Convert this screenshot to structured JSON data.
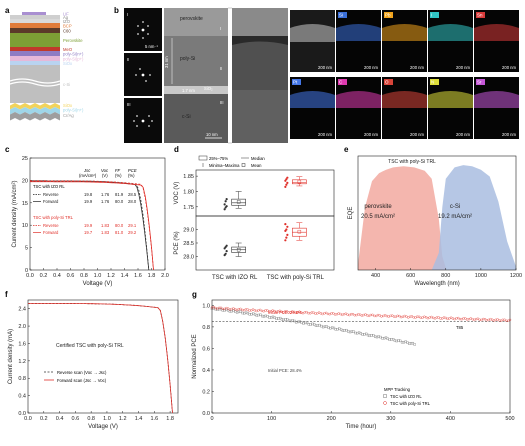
{
  "panel_a": {
    "letter": "a",
    "layers": [
      {
        "name": "LiF",
        "color": "#a98fd1"
      },
      {
        "name": "Ag",
        "color": "#cfcfcf"
      },
      {
        "name": "IZO",
        "color": "#d9d9d9"
      },
      {
        "name": "BCP",
        "color": "#e07b39"
      },
      {
        "name": "C60",
        "color": "#5b3a29"
      },
      {
        "name": "Perovskite",
        "color": "#7d9f35"
      },
      {
        "name": "MeO",
        "color": "#c0392b"
      },
      {
        "name": "poly-Si(n+)",
        "color": "#8e7cc3"
      },
      {
        "name": "poly-Si(p+)",
        "color": "#e6b8d8"
      },
      {
        "name": "SiOx",
        "color": "#b9d3f0"
      },
      {
        "name": "c-Si",
        "color": "#bfbfbf"
      },
      {
        "name": "SiOx",
        "color": "#f2d35a"
      },
      {
        "name": "poly-Si(n+)",
        "color": "#9fd6e8"
      },
      {
        "name": "Cr/Ag",
        "color": "#9e9e9e"
      }
    ]
  },
  "panel_b": {
    "letter": "b",
    "fft_labels": [
      "I",
      "II",
      "III"
    ],
    "scale_fft": "5 nm⁻¹",
    "tem_labels": [
      "perovskite",
      "poly-Si",
      "SiO₂",
      "c-Si"
    ],
    "tem_marks": [
      "I",
      "II",
      "III"
    ],
    "thickness_1": "31 nm",
    "thickness_2": "1.7 nm",
    "scale_tem": "10 nm",
    "scale_map": "200 nm",
    "maps": [
      {
        "el": "Si",
        "color": "#3a6fd8"
      },
      {
        "el": "Pb",
        "color": "#f0a31c"
      },
      {
        "el": "I",
        "color": "#31c4c4"
      },
      {
        "el": "Sn",
        "color": "#d83a3a"
      },
      {
        "el": "Pt",
        "color": "#4477e8"
      },
      {
        "el": "C",
        "color": "#e03ab0"
      },
      {
        "el": "O",
        "color": "#d8453a"
      },
      {
        "el": "N",
        "color": "#dede3a"
      },
      {
        "el": "Sr",
        "color": "#c657d8"
      }
    ]
  },
  "panel_c": {
    "letter": "c",
    "header": [
      "Jsc",
      "Voc",
      "FF",
      "PCE"
    ],
    "units": [
      "(mA/cm²)",
      "(V)",
      "(%)",
      "(%)"
    ],
    "group1_title": "TSC with IZO RL",
    "group1_rows": [
      {
        "label": "Reverse",
        "v": [
          "19.8",
          "1.76",
          "81.9",
          "28.5"
        ]
      },
      {
        "label": "Forward",
        "v": [
          "19.9",
          "1.76",
          "80.0",
          "28.0"
        ]
      }
    ],
    "group2_title": "TSC with poly-Si TRL",
    "group2_rows": [
      {
        "label": "Reverse",
        "v": [
          "19.9",
          "1.83",
          "80.0",
          "29.1"
        ]
      },
      {
        "label": "Forward",
        "v": [
          "19.7",
          "1.83",
          "81.0",
          "29.2"
        ]
      }
    ],
    "xlabel": "Voltage (V)",
    "ylabel": "Current density (mA/cm²)"
  },
  "panel_d": {
    "letter": "d",
    "legend": [
      "25%–75%",
      "Median",
      "Minima–Maxima",
      "Mean"
    ],
    "ylabel_top": "VOC (V)",
    "ylabel_bottom": "PCE (%)",
    "categories": [
      "TSC with IZO RL",
      "TSC with poly-Si TRL"
    ]
  },
  "panel_e": {
    "letter": "e",
    "title": "TSC with poly-Si TRL",
    "label_1": "perovskite",
    "value_1": "20.5 mA/cm²",
    "label_2": "c-Si",
    "value_2": "19.2 mA/cm²",
    "xlabel": "Wavelength (nm)",
    "ylabel": "EQE"
  },
  "panel_f": {
    "letter": "f",
    "title": "Certified TSC with poly-Si TRL",
    "legend_1": "Reverse scan (Voc → Jsc)",
    "legend_2": "Forward scan (Jsc → Voc)",
    "xlabel": "Voltage (V)",
    "ylabel": "Current density (mA)"
  },
  "panel_g": {
    "letter": "g",
    "annot_red": "Initial PCE: 29.0%",
    "annot_gray": "Initial PCE: 28.4%",
    "t85": "T85",
    "legend_title": "MPP Tracking",
    "legend_1": "TSC with IZO RL",
    "legend_2": "TSC with poly-Si TRL",
    "xlabel": "Time (hour)",
    "ylabel": "Normalized PCE"
  },
  "chart_data": [
    {
      "id": "c",
      "type": "line",
      "xlabel": "Voltage (V)",
      "ylabel": "Current density (mA/cm²)",
      "xlim": [
        0,
        2.0
      ],
      "ylim": [
        0,
        25
      ],
      "xticks": [
        0.0,
        0.2,
        0.4,
        0.6,
        0.8,
        1.0,
        1.2,
        1.4,
        1.6,
        1.8,
        2.0
      ],
      "yticks": [
        0,
        5,
        10,
        15,
        20,
        25
      ],
      "series": [
        {
          "name": "Reverse",
          "color": "#333333",
          "dash": "2,1.5",
          "jsc": 19.8,
          "voc": 1.76,
          "knee": 1.58
        },
        {
          "name": "Forward",
          "color": "#333333",
          "dash": "",
          "jsc": 19.9,
          "voc": 1.76,
          "knee": 1.56
        },
        {
          "name": "Reverse",
          "color": "#e0302a",
          "dash": "2,1.5",
          "jsc": 19.9,
          "voc": 1.83,
          "knee": 1.65
        },
        {
          "name": "Forward",
          "color": "#e0302a",
          "dash": "",
          "jsc": 19.7,
          "voc": 1.83,
          "knee": 1.66
        }
      ]
    },
    {
      "id": "d",
      "type": "box",
      "categories": [
        "TSC with IZO RL",
        "TSC with poly-Si TRL"
      ],
      "top": {
        "ylabel": "VOC (V)",
        "ylim": [
          1.72,
          1.87
        ],
        "yticks": [
          1.75,
          1.8,
          1.85
        ],
        "boxes": [
          {
            "color": "#333333",
            "min": 1.745,
            "q1": 1.755,
            "median": 1.763,
            "q3": 1.775,
            "max": 1.8,
            "mean": 1.766,
            "points": [
              1.742,
              1.748,
              1.752,
              1.758,
              1.768,
              1.775
            ]
          },
          {
            "color": "#e0302a",
            "min": 1.818,
            "q1": 1.825,
            "median": 1.83,
            "q3": 1.838,
            "max": 1.848,
            "mean": 1.832,
            "points": [
              1.815,
              1.822,
              1.828,
              1.835,
              1.84,
              1.845
            ]
          }
        ]
      },
      "bottom": {
        "ylabel": "PCE (%)",
        "ylim": [
          27.5,
          29.5
        ],
        "yticks": [
          28.0,
          28.5,
          29.0
        ],
        "boxes": [
          {
            "color": "#333333",
            "min": 28.0,
            "q1": 28.15,
            "median": 28.25,
            "q3": 28.35,
            "max": 28.5,
            "mean": 28.25,
            "points": [
              28.05,
              28.1,
              28.2,
              28.3,
              28.35,
              28.4
            ]
          },
          {
            "color": "#e0302a",
            "min": 28.6,
            "q1": 28.75,
            "median": 28.9,
            "q3": 29.05,
            "max": 29.25,
            "mean": 28.92,
            "points": [
              28.6,
              28.7,
              28.8,
              28.95,
              29.0,
              29.1,
              29.2
            ]
          }
        ]
      }
    },
    {
      "id": "e",
      "type": "area",
      "xlabel": "Wavelength (nm)",
      "ylabel": "EQE",
      "xlim": [
        300,
        1200
      ],
      "xticks": [
        400,
        600,
        800,
        1000,
        1200
      ],
      "ylim": [
        0,
        1
      ],
      "series": [
        {
          "name": "perovskite",
          "color": "#f2a9a0",
          "x": [
            300,
            340,
            380,
            420,
            460,
            500,
            560,
            620,
            680,
            720,
            760,
            780,
            800
          ],
          "y": [
            0.05,
            0.55,
            0.78,
            0.85,
            0.88,
            0.9,
            0.91,
            0.9,
            0.87,
            0.8,
            0.45,
            0.12,
            0.02
          ]
        },
        {
          "name": "c-Si",
          "color": "#a9bde0",
          "x": [
            720,
            760,
            780,
            800,
            850,
            900,
            950,
            1000,
            1050,
            1100,
            1150,
            1200
          ],
          "y": [
            0.0,
            0.15,
            0.55,
            0.8,
            0.9,
            0.92,
            0.91,
            0.88,
            0.82,
            0.6,
            0.25,
            0.03
          ]
        }
      ]
    },
    {
      "id": "f",
      "type": "line",
      "xlabel": "Voltage (V)",
      "ylabel": "Current density (mA)",
      "xlim": [
        0,
        1.9
      ],
      "ylim": [
        0,
        2.6
      ],
      "xticks": [
        0.0,
        0.2,
        0.4,
        0.6,
        0.8,
        1.0,
        1.2,
        1.4,
        1.6,
        1.8
      ],
      "yticks": [
        0.0,
        0.4,
        0.8,
        1.2,
        1.6,
        2.0,
        2.4
      ],
      "series": [
        {
          "name": "Reverse scan",
          "color": "#333333",
          "dash": "2,1.5",
          "isc": 2.52,
          "voc": 1.83,
          "knee": 1.66
        },
        {
          "name": "Forward scan",
          "color": "#e0302a",
          "dash": "",
          "isc": 2.52,
          "voc": 1.83,
          "knee": 1.66
        }
      ]
    },
    {
      "id": "g",
      "type": "scatter",
      "xlabel": "Time (hour)",
      "ylabel": "Normalized PCE",
      "xlim": [
        0,
        500
      ],
      "xticks": [
        0,
        100,
        200,
        300,
        400,
        500
      ],
      "ylim": [
        0.0,
        1.05
      ],
      "yticks": [
        0.0,
        0.2,
        0.4,
        0.6,
        0.8,
        1.0
      ],
      "t85_level": 0.85,
      "series": [
        {
          "name": "TSC with IZO RL",
          "color": "#777777",
          "x_end": 340,
          "y_start": 0.97,
          "y_end": 0.64
        },
        {
          "name": "TSC with poly-Si TRL",
          "color": "#e0302a",
          "x_end": 500,
          "y_start": 0.98,
          "y_end": 0.86
        }
      ]
    }
  ]
}
